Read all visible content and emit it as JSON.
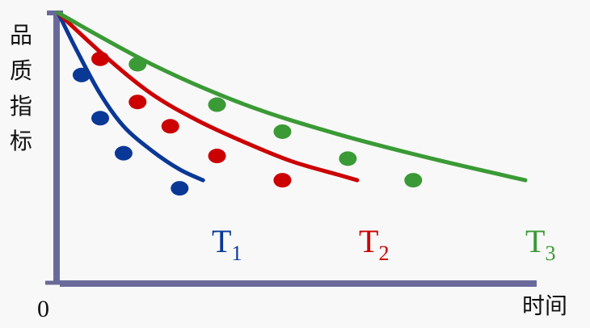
{
  "chart_data": {
    "type": "line",
    "ylabel": "品质指标",
    "xlabel": "时间",
    "origin_label": "0",
    "grid": false,
    "xlim": [
      0,
      10
    ],
    "ylim": [
      0,
      10
    ],
    "series": [
      {
        "name_main": "T",
        "name_sub": "1",
        "color": "#0a3896",
        "curve": [
          [
            0,
            10
          ],
          [
            0.4,
            8.6
          ],
          [
            0.9,
            7.0
          ],
          [
            1.4,
            5.8
          ],
          [
            2.0,
            4.9
          ],
          [
            2.6,
            4.2
          ],
          [
            3.1,
            3.8
          ]
        ],
        "points": [
          [
            0.5,
            7.7
          ],
          [
            0.9,
            6.1
          ],
          [
            1.4,
            4.8
          ],
          [
            2.6,
            3.5
          ]
        ]
      },
      {
        "name_main": "T",
        "name_sub": "2",
        "color": "#cc0000",
        "curve": [
          [
            0,
            10
          ],
          [
            1,
            8.4
          ],
          [
            2,
            7.0
          ],
          [
            3,
            6.0
          ],
          [
            4,
            5.2
          ],
          [
            5,
            4.5
          ],
          [
            6,
            4.0
          ],
          [
            6.4,
            3.8
          ]
        ],
        "points": [
          [
            0.9,
            8.3
          ],
          [
            1.7,
            6.7
          ],
          [
            2.4,
            5.8
          ],
          [
            3.4,
            4.7
          ],
          [
            4.8,
            3.8
          ]
        ]
      },
      {
        "name_main": "T",
        "name_sub": "3",
        "color": "#3a9a35",
        "curve": [
          [
            0,
            10
          ],
          [
            2,
            8.1
          ],
          [
            4,
            6.6
          ],
          [
            6,
            5.5
          ],
          [
            8,
            4.6
          ],
          [
            10,
            3.8
          ]
        ],
        "points": [
          [
            1.7,
            8.1
          ],
          [
            3.4,
            6.6
          ],
          [
            4.8,
            5.6
          ],
          [
            6.2,
            4.6
          ],
          [
            7.6,
            3.8
          ]
        ]
      }
    ]
  }
}
